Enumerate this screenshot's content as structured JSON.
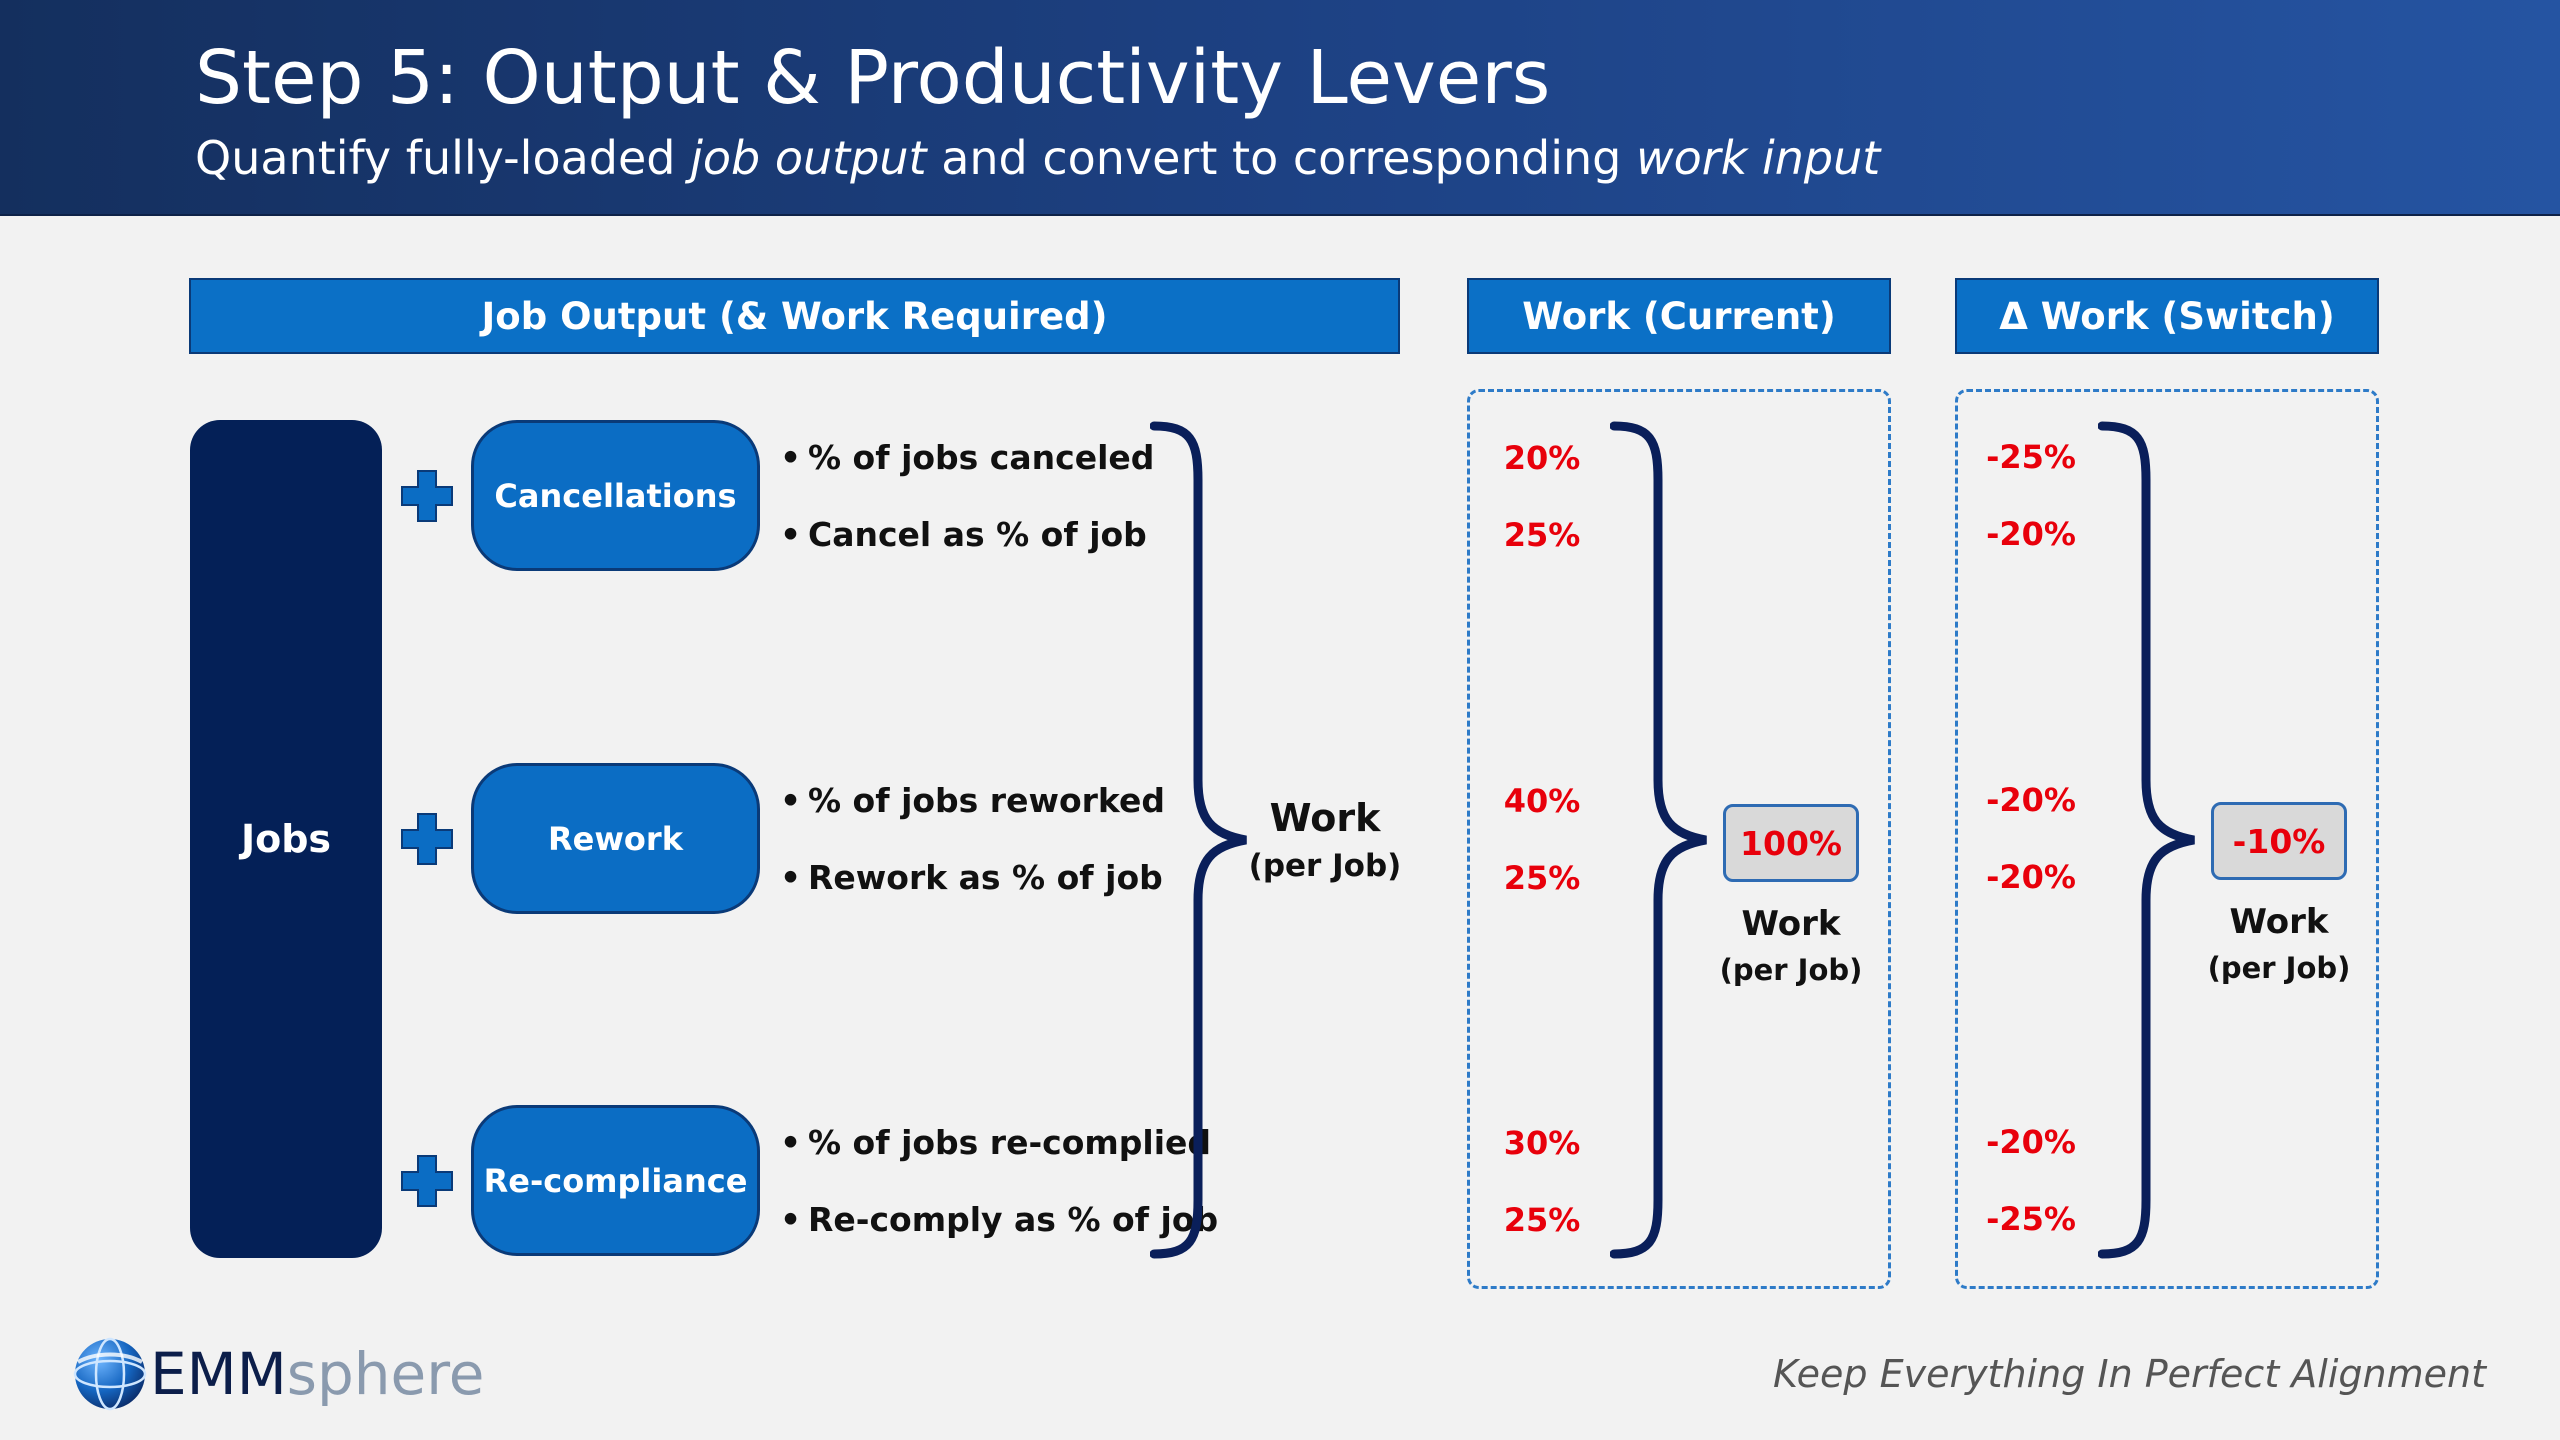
{
  "header": {
    "title": "Step 5:  Output & Productivity Levers",
    "subtitle_part1": "Quantify fully-loaded ",
    "subtitle_em1": "job output",
    "subtitle_part2": " and convert to corresponding ",
    "subtitle_em2": "work input"
  },
  "columns": {
    "job_output": "Job Output (& Work Required)",
    "work_current": "Work (Current)",
    "work_switch": "Δ Work (Switch)"
  },
  "jobs_label": "Jobs",
  "levers": [
    {
      "label": "Cancellations",
      "metrics": [
        {
          "text": "% of jobs canceled",
          "current": "20%",
          "switch": "-25%"
        },
        {
          "text": "Cancel as % of job",
          "current": "25%",
          "switch": "-20%"
        }
      ]
    },
    {
      "label": "Rework",
      "metrics": [
        {
          "text": "% of jobs reworked",
          "current": "40%",
          "switch": "-20%"
        },
        {
          "text": "Rework as % of job",
          "current": "25%",
          "switch": "-20%"
        }
      ]
    },
    {
      "label": "Re-compliance",
      "metrics": [
        {
          "text": "% of jobs re-complied",
          "current": "30%",
          "switch": "-20%"
        },
        {
          "text": "Re-comply as % of job",
          "current": "25%",
          "switch": "-25%"
        }
      ]
    }
  ],
  "bullet_char": "•",
  "work_label": {
    "main": "Work",
    "sub": "(per Job)"
  },
  "results": {
    "current": "100%",
    "switch": "-10%"
  },
  "colors": {
    "banner_dark": "#142f5e",
    "banner_light": "#2554a2",
    "header_fill": "#0b70c6",
    "lever_fill": "#0b6dc4",
    "jobs_fill": "#042057",
    "brace": "#0a1f5a",
    "value_red": "#e8000b",
    "plus_icon": "#0b6dc4"
  },
  "icons": {
    "plus": "plus-icon",
    "brace": "curly-brace-icon",
    "globe": "globe-icon"
  },
  "footer": {
    "logo_part1": "EMM",
    "logo_part2": "sphere",
    "tagline": "Keep Everything In Perfect Alignment"
  }
}
